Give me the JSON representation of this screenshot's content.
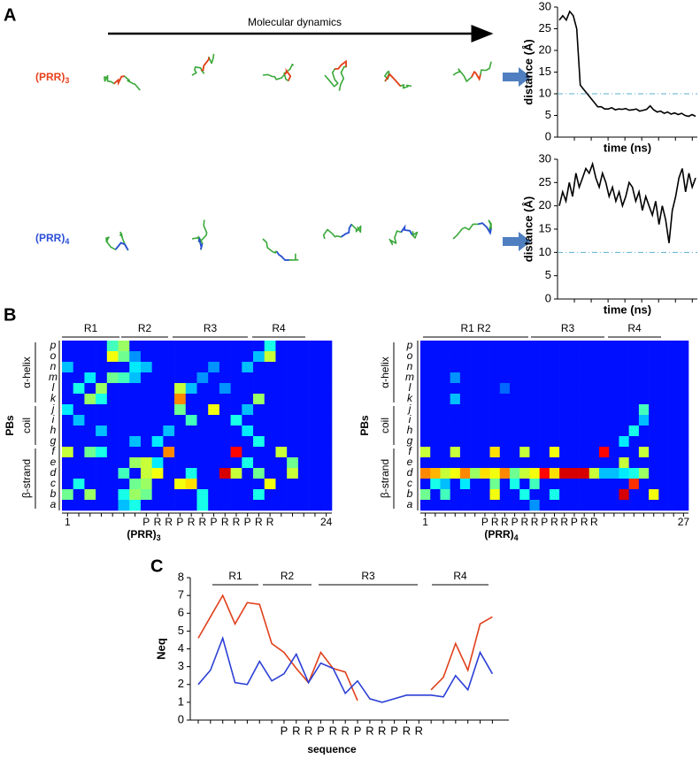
{
  "figure": {
    "panels": [
      "A",
      "B",
      "C"
    ],
    "arrow_label": "Molecular dynamics",
    "rows": [
      {
        "text": "(PRR)",
        "sub": "3",
        "color": "#e8401c"
      },
      {
        "text": "(PRR)",
        "sub": "4",
        "color": "#2b4fd6"
      }
    ]
  },
  "chart_data": [
    {
      "type": "line",
      "ylabel": "distance (Å)",
      "xlabel": "time (ns)",
      "ylim": [
        0,
        30
      ],
      "yticks": [
        0,
        5,
        10,
        15,
        20,
        25,
        30
      ],
      "threshold": 10,
      "threshold_color": "#5aaed0",
      "series": [
        {
          "color": "#000000",
          "values": [
            27,
            28,
            27,
            29,
            28,
            25,
            12,
            11,
            10,
            9,
            8,
            7,
            7,
            6.5,
            6.5,
            6.8,
            6.3,
            6.5,
            6.4,
            6.6,
            6.2,
            6.3,
            6.5,
            6,
            6.2,
            6.4,
            7.2,
            6.3,
            5.8,
            6,
            5.5,
            5.8,
            5.3,
            5.6,
            5.2,
            5.5,
            5,
            4.8,
            5.2,
            4.8
          ]
        }
      ]
    },
    {
      "type": "line",
      "ylabel": "distance (Å)",
      "xlabel": "time (ns)",
      "ylim": [
        0,
        30
      ],
      "yticks": [
        0,
        5,
        10,
        15,
        20,
        25,
        30
      ],
      "threshold": 10,
      "threshold_color": "#5aaed0",
      "series": [
        {
          "color": "#000000",
          "values": [
            20,
            23,
            21,
            25,
            22,
            27,
            24,
            26,
            28,
            27,
            29,
            26,
            24,
            27,
            25,
            22,
            24,
            21,
            23,
            20,
            22,
            25,
            24,
            21,
            23,
            19,
            22,
            20,
            18,
            21,
            16,
            20,
            17,
            12,
            19,
            22,
            26,
            28,
            23,
            27,
            24,
            26
          ]
        }
      ]
    },
    {
      "type": "heatmap",
      "ylabel": "PBs",
      "xlabel": {
        "text": "(PRR)",
        "sub": "3"
      },
      "row_groups": [
        "α-helix",
        "coil",
        "β-strand"
      ],
      "regions": [
        "R1",
        "R2",
        "R3",
        "R4"
      ],
      "rows": [
        "p",
        "o",
        "n",
        "m",
        "l",
        "k",
        "j",
        "i",
        "h",
        "g",
        "f",
        "e",
        "d",
        "c",
        "b",
        "a"
      ],
      "categories": [
        "1",
        null,
        null,
        null,
        null,
        null,
        null,
        "P",
        "R",
        "R",
        "P",
        "R",
        "R",
        "P",
        "R",
        "R",
        "P",
        "R",
        "R",
        null,
        null,
        null,
        null,
        "24"
      ],
      "z": [
        [
          0,
          0,
          0,
          0,
          0.35,
          0.45,
          0,
          0,
          0,
          0,
          0,
          0,
          0,
          0,
          0,
          0,
          0,
          0,
          0.3,
          0,
          0,
          0,
          0,
          0
        ],
        [
          0,
          0,
          0,
          0,
          0.55,
          0.4,
          0.15,
          0,
          0,
          0,
          0,
          0,
          0,
          0,
          0,
          0,
          0,
          0.2,
          0.5,
          0,
          0,
          0,
          0,
          0
        ],
        [
          0.2,
          0,
          0,
          0,
          0,
          0,
          0.25,
          0.2,
          0,
          0,
          0,
          0,
          0,
          0.15,
          0,
          0,
          0.2,
          0,
          0,
          0,
          0,
          0,
          0,
          0
        ],
        [
          0,
          0,
          0.25,
          0,
          0.4,
          0.35,
          0.2,
          0,
          0,
          0,
          0,
          0,
          0.15,
          0,
          0,
          0,
          0,
          0,
          0,
          0,
          0,
          0,
          0,
          0
        ],
        [
          0,
          0.3,
          0,
          0.45,
          0,
          0,
          0,
          0,
          0,
          0,
          0.5,
          0.2,
          0,
          0,
          0.15,
          0,
          0,
          0,
          0,
          0,
          0,
          0,
          0,
          0
        ],
        [
          0,
          0,
          0.45,
          0.3,
          0,
          0,
          0,
          0,
          0,
          0,
          0.7,
          0,
          0,
          0,
          0,
          0,
          0,
          0.45,
          0,
          0,
          0,
          0,
          0,
          0
        ],
        [
          0.25,
          0,
          0,
          0,
          0,
          0,
          0,
          0,
          0,
          0,
          0.4,
          0,
          0,
          0.55,
          0,
          0,
          0.2,
          0,
          0,
          0,
          0,
          0,
          0,
          0
        ],
        [
          0,
          0.2,
          0,
          0,
          0,
          0,
          0,
          0,
          0,
          0,
          0,
          0.35,
          0,
          0,
          0,
          0.3,
          0,
          0,
          0,
          0,
          0,
          0,
          0,
          0
        ],
        [
          0,
          0,
          0,
          0.2,
          0,
          0,
          0,
          0,
          0,
          0.2,
          0,
          0,
          0,
          0,
          0,
          0,
          0.25,
          0,
          0,
          0,
          0,
          0,
          0,
          0
        ],
        [
          0,
          0,
          0,
          0,
          0,
          0,
          0.2,
          0,
          0.25,
          0,
          0,
          0,
          0,
          0,
          0,
          0,
          0,
          0.3,
          0,
          0,
          0,
          0,
          0,
          0
        ],
        [
          0.5,
          0,
          0.4,
          0.3,
          0,
          0,
          0,
          0,
          0,
          0.7,
          0,
          0,
          0,
          0,
          0,
          0.85,
          0,
          0,
          0,
          0.5,
          0,
          0,
          0,
          0
        ],
        [
          0,
          0,
          0,
          0,
          0,
          0,
          0.45,
          0.5,
          0.25,
          0,
          0,
          0,
          0,
          0,
          0,
          0,
          0.3,
          0,
          0,
          0,
          0.4,
          0,
          0,
          0
        ],
        [
          0,
          0,
          0,
          0,
          0,
          0.35,
          0,
          0.5,
          0.55,
          0,
          0,
          0.3,
          0,
          0,
          0.9,
          0.5,
          0,
          0.4,
          0,
          0,
          0.5,
          0,
          0,
          0
        ],
        [
          0,
          0.3,
          0,
          0,
          0,
          0,
          0.4,
          0.45,
          0,
          0,
          0.55,
          0.6,
          0,
          0,
          0,
          0,
          0,
          0,
          0.55,
          0,
          0,
          0,
          0,
          0
        ],
        [
          0.4,
          0,
          0.45,
          0,
          0,
          0.3,
          0.45,
          0.4,
          0,
          0,
          0,
          0,
          0.3,
          0,
          0,
          0,
          0,
          0.3,
          0,
          0,
          0,
          0,
          0,
          0
        ],
        [
          0,
          0,
          0,
          0,
          0,
          0.2,
          0.3,
          0,
          0,
          0,
          0,
          0,
          0.3,
          0,
          0,
          0,
          0,
          0,
          0,
          0,
          0,
          0,
          0,
          0
        ]
      ]
    },
    {
      "type": "heatmap",
      "ylabel": "PBs",
      "xlabel": {
        "text": "(PRR)",
        "sub": "4"
      },
      "row_groups": [
        "α-helix",
        "coil",
        "β-strand"
      ],
      "regions": [
        "R1 R2",
        "R3",
        "R4"
      ],
      "rows": [
        "p",
        "o",
        "n",
        "m",
        "l",
        "k",
        "j",
        "i",
        "h",
        "g",
        "f",
        "e",
        "d",
        "c",
        "b",
        "a"
      ],
      "categories": [
        "1",
        null,
        null,
        null,
        null,
        null,
        "P",
        "R",
        "R",
        "P",
        "R",
        "R",
        "P",
        "R",
        "R",
        "P",
        "R",
        "R",
        null,
        null,
        null,
        null,
        null,
        null,
        null,
        null,
        "27"
      ],
      "z": [
        [
          0,
          0,
          0,
          0,
          0,
          0,
          0,
          0,
          0,
          0,
          0,
          0,
          0,
          0,
          0,
          0,
          0,
          0,
          0,
          0,
          0,
          0,
          0,
          0,
          0,
          0,
          0
        ],
        [
          0,
          0,
          0,
          0,
          0,
          0,
          0,
          0,
          0,
          0,
          0,
          0,
          0,
          0,
          0,
          0,
          0,
          0,
          0,
          0,
          0,
          0,
          0,
          0,
          0,
          0,
          0
        ],
        [
          0,
          0,
          0,
          0,
          0,
          0,
          0,
          0,
          0,
          0,
          0,
          0,
          0,
          0,
          0,
          0,
          0,
          0,
          0,
          0,
          0,
          0,
          0,
          0,
          0,
          0,
          0
        ],
        [
          0,
          0,
          0,
          0.15,
          0,
          0,
          0,
          0,
          0,
          0,
          0,
          0,
          0,
          0,
          0,
          0,
          0,
          0,
          0,
          0,
          0,
          0,
          0,
          0,
          0,
          0,
          0
        ],
        [
          0,
          0,
          0,
          0,
          0,
          0,
          0,
          0,
          0.1,
          0,
          0,
          0,
          0,
          0,
          0,
          0,
          0,
          0,
          0,
          0,
          0,
          0,
          0,
          0,
          0,
          0,
          0
        ],
        [
          0,
          0,
          0,
          0.2,
          0,
          0,
          0,
          0,
          0,
          0,
          0,
          0,
          0,
          0,
          0,
          0,
          0,
          0,
          0,
          0,
          0,
          0,
          0,
          0,
          0,
          0,
          0
        ],
        [
          0,
          0,
          0,
          0,
          0,
          0,
          0,
          0,
          0,
          0,
          0,
          0,
          0,
          0,
          0,
          0,
          0,
          0,
          0,
          0,
          0,
          0,
          0.35,
          0,
          0,
          0,
          0
        ],
        [
          0,
          0,
          0,
          0,
          0,
          0,
          0,
          0,
          0,
          0,
          0,
          0,
          0,
          0,
          0,
          0,
          0,
          0,
          0,
          0,
          0,
          0,
          0.2,
          0,
          0,
          0,
          0
        ],
        [
          0,
          0,
          0,
          0,
          0,
          0,
          0,
          0,
          0,
          0,
          0,
          0,
          0,
          0,
          0,
          0,
          0,
          0,
          0,
          0,
          0,
          0.3,
          0,
          0,
          0,
          0,
          0
        ],
        [
          0,
          0,
          0,
          0,
          0,
          0,
          0,
          0,
          0,
          0,
          0,
          0,
          0,
          0,
          0,
          0,
          0,
          0,
          0,
          0,
          0.25,
          0,
          0,
          0,
          0,
          0,
          0
        ],
        [
          0.5,
          0,
          0,
          0.5,
          0,
          0,
          0,
          0.6,
          0,
          0,
          0.5,
          0,
          0,
          0.55,
          0,
          0,
          0,
          0,
          0.85,
          0,
          0,
          0,
          0.5,
          0,
          0,
          0,
          0
        ],
        [
          0,
          0,
          0,
          0,
          0,
          0,
          0,
          0,
          0,
          0,
          0,
          0,
          0,
          0,
          0,
          0,
          0,
          0,
          0,
          0,
          0.5,
          0,
          0,
          0,
          0,
          0,
          0
        ],
        [
          0.7,
          0.65,
          0.5,
          0.55,
          0.7,
          0.45,
          0.6,
          0.55,
          0.7,
          0.4,
          0.5,
          0.55,
          0.85,
          0.6,
          0.9,
          0.9,
          0.9,
          0.5,
          0.2,
          0.2,
          0.25,
          0.3,
          0.45,
          0,
          0,
          0,
          0
        ],
        [
          0,
          0.3,
          0.2,
          0,
          0.25,
          0,
          0,
          0.4,
          0,
          0.3,
          0,
          0.35,
          0,
          0,
          0,
          0,
          0,
          0,
          0,
          0,
          0,
          0.8,
          0,
          0,
          0,
          0,
          0
        ],
        [
          0.4,
          0,
          0.35,
          0,
          0,
          0,
          0,
          0.55,
          0,
          0,
          0.3,
          0,
          0,
          0.3,
          0,
          0,
          0,
          0,
          0,
          0,
          0.9,
          0,
          0,
          0.55,
          0,
          0,
          0
        ],
        [
          0,
          0,
          0,
          0,
          0,
          0,
          0,
          0,
          0,
          0,
          0,
          0.15,
          0,
          0,
          0,
          0,
          0,
          0,
          0,
          0,
          0,
          0,
          0,
          0,
          0,
          0,
          0
        ]
      ]
    },
    {
      "type": "line",
      "ylabel": "Neq",
      "xlabel": "sequence",
      "ylim": [
        0,
        8
      ],
      "yticks": [
        0,
        1,
        2,
        3,
        4,
        5,
        6,
        7,
        8
      ],
      "regions": [
        "R1",
        "R2",
        "R3",
        "R4"
      ],
      "categories": [
        null,
        null,
        null,
        null,
        null,
        null,
        null,
        "P",
        "R",
        "R",
        "P",
        "R",
        "R",
        "P",
        "R",
        "R",
        "P",
        "R",
        "R",
        null,
        null,
        null,
        null,
        null,
        null
      ],
      "series": [
        {
          "color": "#e0401c",
          "values": [
            4.6,
            5.8,
            7.0,
            5.4,
            6.6,
            6.5,
            4.3,
            3.8,
            2.9,
            2.1,
            3.8,
            2.9,
            2.7,
            1.1,
            null,
            null,
            null,
            null,
            null,
            1.7,
            2.4,
            4.3,
            2.8,
            5.4,
            5.8
          ]
        },
        {
          "color": "#2b3fd6",
          "values": [
            2.0,
            2.8,
            4.6,
            2.1,
            2.0,
            3.3,
            2.2,
            2.6,
            3.7,
            2.1,
            3.2,
            2.9,
            1.5,
            2.2,
            1.2,
            1.0,
            1.2,
            1.4,
            1.4,
            1.4,
            1.3,
            2.5,
            1.7,
            3.8,
            2.6
          ]
        }
      ]
    }
  ]
}
